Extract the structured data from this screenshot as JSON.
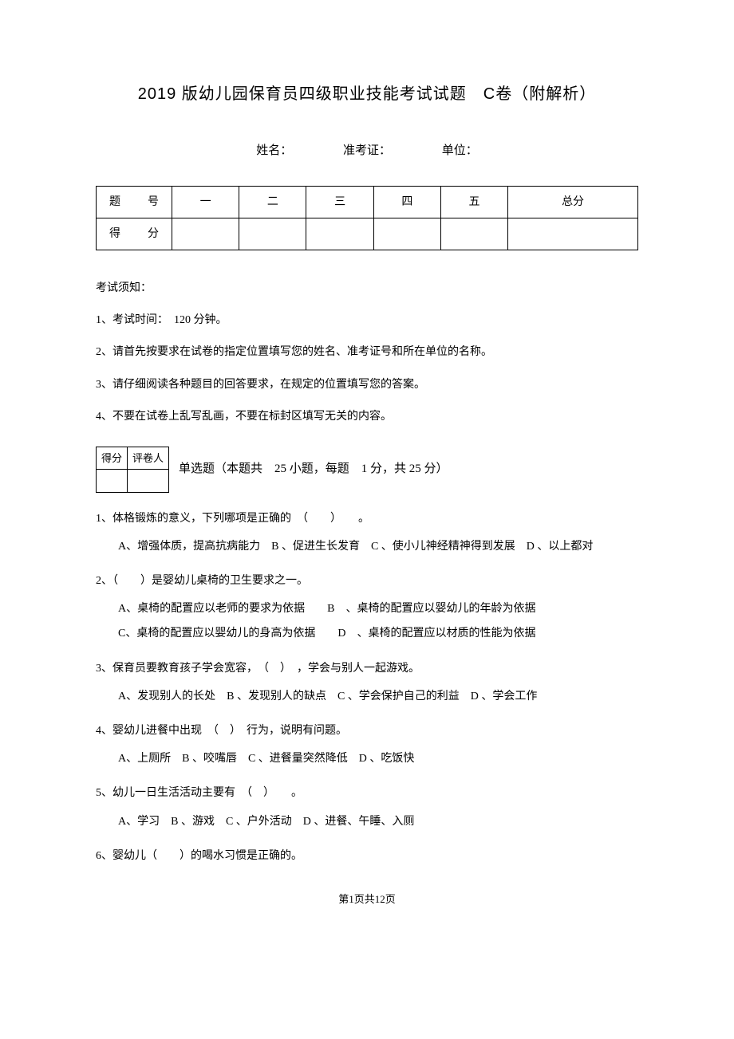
{
  "title": "2019 版幼儿园保育员四级职业技能考试试题　C卷（附解析）",
  "info": {
    "name_label": "姓名：",
    "ticket_label": "准考证：",
    "unit_label": "单位："
  },
  "score_table": {
    "row1": [
      "题　号",
      "一",
      "二",
      "三",
      "四",
      "五",
      "总分"
    ],
    "row2_label": "得　分"
  },
  "notice_title": "考试须知：",
  "notices": [
    "1、考试时间：　120 分钟。",
    "2、请首先按要求在试卷的指定位置填写您的姓名、准考证号和所在单位的名称。",
    "3、请仔细阅读各种题目的回答要求，在规定的位置填写您的答案。",
    "4、不要在试卷上乱写乱画，不要在标封区填写无关的内容。"
  ],
  "grader": {
    "score": "得分",
    "reviewer": "评卷人"
  },
  "section1_title": "单选题（本题共　25 小题，每题　1 分，共 25 分）",
  "questions": [
    {
      "stem": "1、体格锻炼的意义，下列哪项是正确的　（　　）　　。",
      "opts": "A、增强体质，提高抗病能力　B 、促进生长发育　C 、使小儿神经精神得到发展　D 、以上都对"
    },
    {
      "stem": "2、（　　）是婴幼儿桌椅的卫生要求之一。",
      "opts_lines": [
        "A、桌椅的配置应以老师的要求为依据　　B　、桌椅的配置应以婴幼儿的年龄为依据",
        "C、桌椅的配置应以婴幼儿的身高为依据　　D　、桌椅的配置应以材质的性能为依据"
      ]
    },
    {
      "stem": "3、保育员要教育孩子学会宽容，　（　）　，学会与别人一起游戏。",
      "opts": "A、发现别人的长处　B 、发现别人的缺点　C 、学会保护自己的利益　D 、学会工作"
    },
    {
      "stem": "4、婴幼儿进餐中出现　（　）　行为，说明有问题。",
      "opts": "A、上厕所　B 、咬嘴唇　C 、进餐量突然降低　D 、吃饭快"
    },
    {
      "stem": "5、幼儿一日生活活动主要有　（　）　　。",
      "opts": "A、学习　B 、游戏　C 、户外活动　D 、进餐、午睡、入厕"
    },
    {
      "stem": "6、婴幼儿（　　）的喝水习惯是正确的。",
      "opts": ""
    }
  ],
  "footer": "第1页共12页"
}
